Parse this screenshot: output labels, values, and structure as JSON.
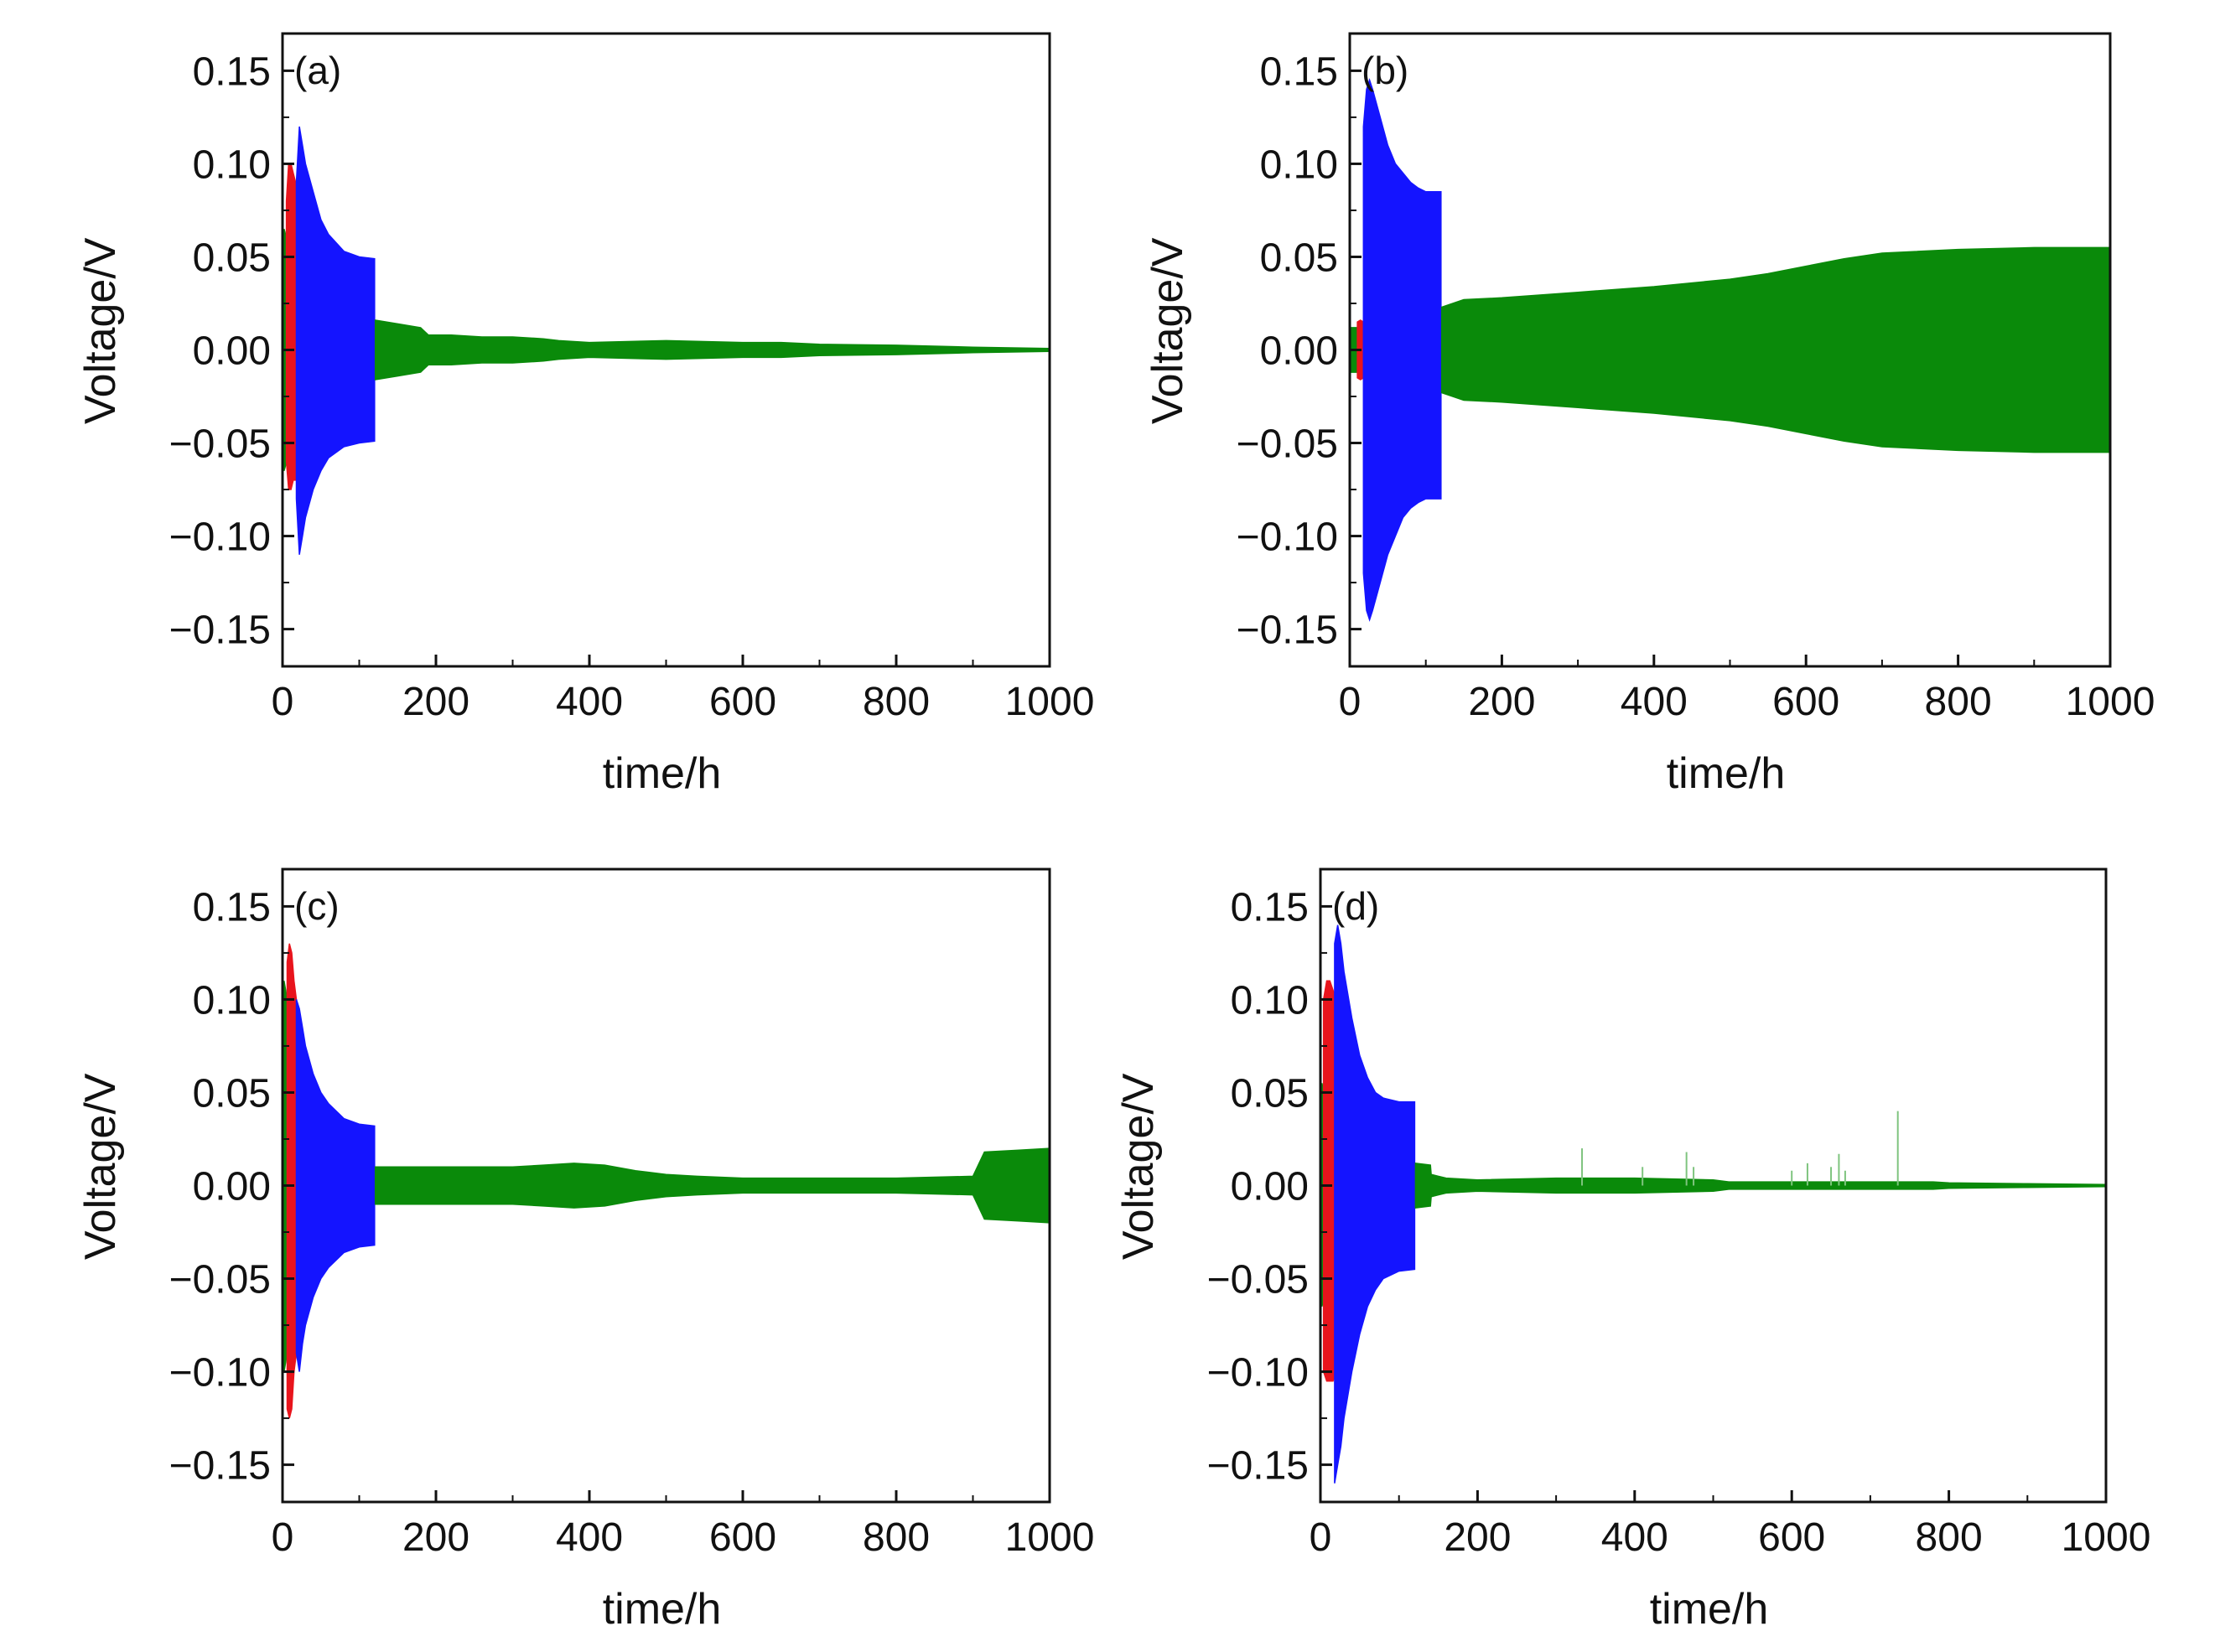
{
  "figure": {
    "x_unit_label": "time/h",
    "y_unit_label": "Voltage/V"
  },
  "chart_data": [
    {
      "type": "area",
      "panel": "(a)",
      "xlabel": "time/h",
      "ylabel": "Voltage/V",
      "xlim": [
        0,
        1000
      ],
      "ylim": [
        -0.17,
        0.17
      ],
      "xticks": [
        0,
        200,
        400,
        600,
        800,
        1000
      ],
      "xtick_labels": [
        "0",
        "200",
        "400",
        "600",
        "800",
        "1000"
      ],
      "yticks": [
        0.15,
        0.1,
        0.05,
        0.0,
        -0.05,
        -0.1,
        -0.15
      ],
      "ytick_labels": [
        "0.15",
        "0.10",
        "0.05",
        "0.00",
        "−0.05",
        "−0.10",
        "−0.15"
      ],
      "colors": {
        "green": "#0a8a0a",
        "red": "#e8141c",
        "blue": "#1414ff"
      },
      "series": [
        {
          "name": "green",
          "color": "#0a8a0a",
          "x": [
            0,
            2,
            4,
            6,
            8
          ],
          "upper": [
            0.06,
            0.065,
            0.062,
            0.06,
            0.06
          ],
          "lower": [
            -0.06,
            -0.065,
            -0.062,
            -0.06,
            -0.06
          ]
        },
        {
          "name": "red",
          "color": "#e8141c",
          "x": [
            5,
            8,
            11,
            14,
            17,
            20
          ],
          "upper": [
            0.08,
            0.1,
            0.1,
            0.095,
            0.09,
            0.085
          ],
          "lower": [
            -0.06,
            -0.075,
            -0.075,
            -0.07,
            -0.07,
            -0.07
          ]
        },
        {
          "name": "blue",
          "color": "#1414ff",
          "x": [
            18,
            22,
            26,
            30,
            40,
            50,
            60,
            80,
            100,
            120
          ],
          "upper": [
            0.09,
            0.12,
            0.11,
            0.1,
            0.085,
            0.07,
            0.062,
            0.053,
            0.05,
            0.049
          ],
          "lower": [
            -0.08,
            -0.11,
            -0.1,
            -0.09,
            -0.075,
            -0.065,
            -0.058,
            -0.052,
            -0.05,
            -0.049
          ]
        },
        {
          "name": "green",
          "color": "#0a8a0a",
          "x": [
            121,
            150,
            180,
            190,
            220,
            260,
            300,
            340,
            360,
            400,
            500,
            600,
            650,
            700,
            800,
            900,
            1000
          ],
          "upper": [
            0.016,
            0.014,
            0.012,
            0.008,
            0.008,
            0.007,
            0.007,
            0.006,
            0.005,
            0.004,
            0.005,
            0.004,
            0.004,
            0.003,
            0.0025,
            0.0015,
            0.0008
          ],
          "lower": [
            -0.016,
            -0.014,
            -0.012,
            -0.008,
            -0.008,
            -0.007,
            -0.007,
            -0.006,
            -0.005,
            -0.004,
            -0.005,
            -0.004,
            -0.004,
            -0.003,
            -0.0025,
            -0.0015,
            -0.0008
          ]
        }
      ],
      "spikes": []
    },
    {
      "type": "area",
      "panel": "(b)",
      "xlabel": "time/h",
      "ylabel": "Voltage/V",
      "xlim": [
        0,
        1000
      ],
      "ylim": [
        -0.17,
        0.17
      ],
      "xticks": [
        0,
        200,
        400,
        600,
        800,
        1000
      ],
      "xtick_labels": [
        "0",
        "200",
        "400",
        "600",
        "800",
        "1000"
      ],
      "yticks": [
        0.15,
        0.1,
        0.05,
        0.0,
        -0.05,
        -0.1,
        -0.15
      ],
      "ytick_labels": [
        "0.15",
        "0.10",
        "0.05",
        "0.00",
        "−0.05",
        "−0.10",
        "−0.15"
      ],
      "colors": {
        "green": "#0a8a0a",
        "red": "#e8141c",
        "blue": "#1414ff"
      },
      "series": [
        {
          "name": "green",
          "color": "#0a8a0a",
          "x": [
            0,
            5,
            10
          ],
          "upper": [
            0.012,
            0.012,
            0.012
          ],
          "lower": [
            -0.012,
            -0.012,
            -0.012
          ]
        },
        {
          "name": "red",
          "color": "#e8141c",
          "x": [
            10,
            14,
            18
          ],
          "upper": [
            0.015,
            0.016,
            0.015
          ],
          "lower": [
            -0.015,
            -0.016,
            -0.015
          ]
        },
        {
          "name": "blue",
          "color": "#1414ff",
          "x": [
            18,
            22,
            26,
            30,
            40,
            50,
            60,
            70,
            80,
            90,
            100,
            120
          ],
          "upper": [
            0.12,
            0.14,
            0.145,
            0.14,
            0.125,
            0.11,
            0.1,
            0.095,
            0.09,
            0.087,
            0.085,
            0.085
          ],
          "lower": [
            -0.12,
            -0.14,
            -0.145,
            -0.14,
            -0.125,
            -0.11,
            -0.1,
            -0.09,
            -0.085,
            -0.082,
            -0.08,
            -0.08
          ]
        },
        {
          "name": "green",
          "color": "#0a8a0a",
          "x": [
            121,
            150,
            200,
            300,
            400,
            500,
            550,
            600,
            650,
            700,
            800,
            900,
            1000
          ],
          "upper": [
            0.023,
            0.027,
            0.028,
            0.031,
            0.034,
            0.038,
            0.041,
            0.045,
            0.049,
            0.052,
            0.054,
            0.055,
            0.055
          ],
          "lower": [
            -0.023,
            -0.027,
            -0.028,
            -0.031,
            -0.034,
            -0.038,
            -0.041,
            -0.045,
            -0.049,
            -0.052,
            -0.054,
            -0.055,
            -0.055
          ]
        }
      ],
      "spikes": []
    },
    {
      "type": "area",
      "panel": "(c)",
      "xlabel": "time/h",
      "ylabel": "Voltage/V",
      "xlim": [
        0,
        1000
      ],
      "ylim": [
        -0.17,
        0.17
      ],
      "xticks": [
        0,
        200,
        400,
        600,
        800,
        1000
      ],
      "xtick_labels": [
        "0",
        "200",
        "400",
        "600",
        "800",
        "1000"
      ],
      "yticks": [
        0.15,
        0.1,
        0.05,
        0.0,
        -0.05,
        -0.1,
        -0.15
      ],
      "ytick_labels": [
        "0.15",
        "0.10",
        "0.05",
        "0.00",
        "−0.05",
        "−0.10",
        "−0.15"
      ],
      "colors": {
        "green": "#0a8a0a",
        "red": "#e8141c",
        "blue": "#1414ff"
      },
      "series": [
        {
          "name": "green",
          "color": "#0a8a0a",
          "x": [
            0,
            2,
            4,
            6,
            8
          ],
          "upper": [
            0.1,
            0.11,
            0.105,
            0.1,
            0.095
          ],
          "lower": [
            -0.095,
            -0.1,
            -0.095,
            -0.09,
            -0.09
          ]
        },
        {
          "name": "red",
          "color": "#e8141c",
          "x": [
            6,
            9,
            12,
            15,
            18
          ],
          "upper": [
            0.12,
            0.13,
            0.125,
            0.11,
            0.1
          ],
          "lower": [
            -0.12,
            -0.125,
            -0.12,
            -0.1,
            -0.09
          ]
        },
        {
          "name": "blue",
          "color": "#1414ff",
          "x": [
            18,
            22,
            26,
            30,
            40,
            50,
            60,
            80,
            100,
            120
          ],
          "upper": [
            0.1,
            0.095,
            0.085,
            0.075,
            0.06,
            0.05,
            0.044,
            0.036,
            0.033,
            0.032
          ],
          "lower": [
            -0.09,
            -0.1,
            -0.085,
            -0.075,
            -0.06,
            -0.05,
            -0.044,
            -0.036,
            -0.033,
            -0.032
          ]
        },
        {
          "name": "green",
          "color": "#0a8a0a",
          "x": [
            121,
            200,
            300,
            340,
            380,
            420,
            460,
            500,
            540,
            600,
            700,
            800,
            900,
            915,
            960,
            1000
          ],
          "upper": [
            0.01,
            0.01,
            0.01,
            0.011,
            0.012,
            0.011,
            0.008,
            0.006,
            0.005,
            0.004,
            0.004,
            0.004,
            0.005,
            0.018,
            0.019,
            0.02
          ],
          "lower": [
            -0.01,
            -0.01,
            -0.01,
            -0.011,
            -0.012,
            -0.011,
            -0.008,
            -0.006,
            -0.005,
            -0.004,
            -0.004,
            -0.004,
            -0.005,
            -0.018,
            -0.019,
            -0.02
          ]
        }
      ],
      "spikes": []
    },
    {
      "type": "area",
      "panel": "(d)",
      "xlabel": "time/h",
      "ylabel": "Voltage/V",
      "xlim": [
        0,
        1000
      ],
      "ylim": [
        -0.17,
        0.17
      ],
      "xticks": [
        0,
        200,
        400,
        600,
        800,
        1000
      ],
      "xtick_labels": [
        "0",
        "200",
        "400",
        "600",
        "800",
        "1000"
      ],
      "yticks": [
        0.15,
        0.1,
        0.05,
        0.0,
        -0.05,
        -0.1,
        -0.15
      ],
      "ytick_labels": [
        "0.15",
        "0.10",
        "0.05",
        "0.00",
        "−0.05",
        "−0.10",
        "−0.15"
      ],
      "colors": {
        "green": "#0a8a0a",
        "red": "#e8141c",
        "blue": "#1414ff"
      },
      "series": [
        {
          "name": "green",
          "color": "#0a8a0a",
          "x": [
            0,
            2,
            4,
            6
          ],
          "upper": [
            0.05,
            0.055,
            0.05,
            0.05
          ],
          "lower": [
            -0.06,
            -0.065,
            -0.06,
            -0.06
          ]
        },
        {
          "name": "red",
          "color": "#e8141c",
          "x": [
            4,
            8,
            12,
            16,
            20
          ],
          "upper": [
            0.1,
            0.11,
            0.11,
            0.105,
            0.1
          ],
          "lower": [
            -0.1,
            -0.105,
            -0.105,
            -0.105,
            -0.1
          ]
        },
        {
          "name": "blue",
          "color": "#1414ff",
          "x": [
            18,
            22,
            26,
            30,
            40,
            50,
            60,
            70,
            80,
            100,
            120
          ],
          "upper": [
            0.13,
            0.14,
            0.13,
            0.115,
            0.09,
            0.07,
            0.058,
            0.05,
            0.047,
            0.045,
            0.045
          ],
          "lower": [
            -0.16,
            -0.15,
            -0.14,
            -0.125,
            -0.1,
            -0.08,
            -0.065,
            -0.056,
            -0.05,
            -0.046,
            -0.045
          ]
        },
        {
          "name": "green",
          "color": "#0a8a0a",
          "x": [
            121,
            140,
            141,
            150,
            160,
            200,
            300,
            400,
            500,
            520,
            600,
            700,
            780,
            800,
            900,
            1000
          ],
          "upper": [
            0.012,
            0.011,
            0.006,
            0.005,
            0.004,
            0.003,
            0.004,
            0.004,
            0.003,
            0.002,
            0.002,
            0.002,
            0.002,
            0.0015,
            0.001,
            0.0006
          ],
          "lower": [
            -0.012,
            -0.011,
            -0.006,
            -0.005,
            -0.004,
            -0.003,
            -0.004,
            -0.004,
            -0.003,
            -0.002,
            -0.002,
            -0.002,
            -0.002,
            -0.0015,
            -0.001,
            -0.0006
          ]
        }
      ],
      "spikes": [
        {
          "x": 333,
          "y": 0.02
        },
        {
          "x": 410,
          "y": 0.01
        },
        {
          "x": 466,
          "y": 0.018
        },
        {
          "x": 475,
          "y": 0.01
        },
        {
          "x": 600,
          "y": 0.008
        },
        {
          "x": 620,
          "y": 0.012
        },
        {
          "x": 650,
          "y": 0.01
        },
        {
          "x": 660,
          "y": 0.017
        },
        {
          "x": 668,
          "y": 0.008
        },
        {
          "x": 735,
          "y": 0.04
        }
      ]
    }
  ]
}
